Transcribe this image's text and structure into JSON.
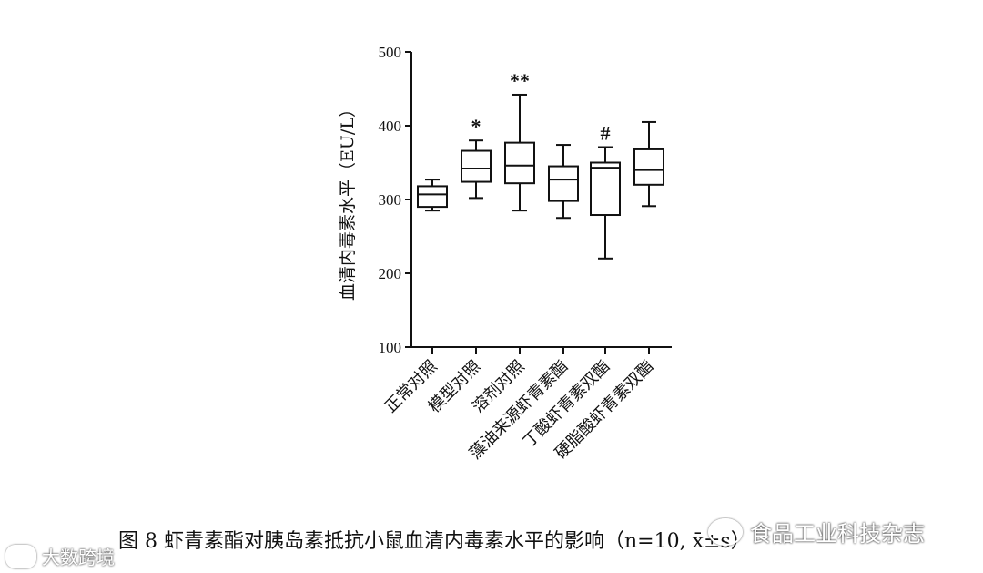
{
  "chart_data": {
    "type": "boxplot",
    "ylabel": "血清内毒素水平（EU/L）",
    "ylim": [
      100,
      500
    ],
    "yticks": [
      100,
      200,
      300,
      400,
      500
    ],
    "categories": [
      "正常对照",
      "模型对照",
      "溶剂对照",
      "藻油来源虾青素酯",
      "丁酸虾青素双酯",
      "硬脂酸虾青素双酯"
    ],
    "boxes": [
      {
        "min": 285,
        "q1": 290,
        "median": 307,
        "q3": 318,
        "max": 327,
        "mark": ""
      },
      {
        "min": 302,
        "q1": 324,
        "median": 342,
        "q3": 366,
        "max": 380,
        "mark": "*"
      },
      {
        "min": 285,
        "q1": 322,
        "median": 346,
        "q3": 377,
        "max": 442,
        "mark": "**"
      },
      {
        "min": 275,
        "q1": 298,
        "median": 327,
        "q3": 345,
        "max": 374,
        "mark": ""
      },
      {
        "min": 220,
        "q1": 279,
        "median": 343,
        "q3": 350,
        "max": 371,
        "mark": "#"
      },
      {
        "min": 291,
        "q1": 320,
        "median": 340,
        "q3": 368,
        "max": 405,
        "mark": ""
      }
    ]
  },
  "caption": "图 8 虾青素酯对胰岛素抵抗小鼠血清内毒素水平的影响（n=10, x̄±s）",
  "watermark_left": "大数跨境",
  "watermark_right": "食品工业科技杂志"
}
